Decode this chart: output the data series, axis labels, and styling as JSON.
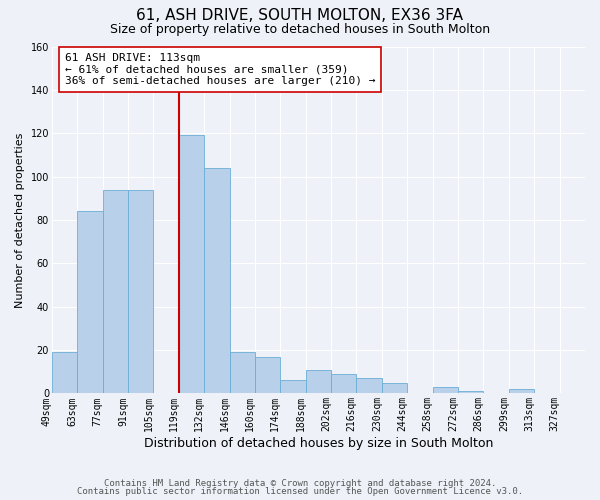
{
  "title": "61, ASH DRIVE, SOUTH MOLTON, EX36 3FA",
  "subtitle": "Size of property relative to detached houses in South Molton",
  "xlabel": "Distribution of detached houses by size in South Molton",
  "ylabel": "Number of detached properties",
  "footnote1": "Contains HM Land Registry data © Crown copyright and database right 2024.",
  "footnote2": "Contains public sector information licensed under the Open Government Licence v3.0.",
  "bin_labels": [
    "49sqm",
    "63sqm",
    "77sqm",
    "91sqm",
    "105sqm",
    "119sqm",
    "132sqm",
    "146sqm",
    "160sqm",
    "174sqm",
    "188sqm",
    "202sqm",
    "216sqm",
    "230sqm",
    "244sqm",
    "258sqm",
    "272sqm",
    "286sqm",
    "299sqm",
    "313sqm",
    "327sqm"
  ],
  "bar_values": [
    19,
    84,
    94,
    94,
    0,
    119,
    104,
    19,
    17,
    6,
    11,
    9,
    7,
    5,
    0,
    3,
    1,
    0,
    2,
    0,
    0
  ],
  "bar_color": "#b8d0ea",
  "bar_edge_color": "#6aaed6",
  "background_color": "#eef2f8",
  "grid_color": "#ffffff",
  "ylim": [
    0,
    160
  ],
  "yticks": [
    0,
    20,
    40,
    60,
    80,
    100,
    120,
    140,
    160
  ],
  "annotation_property": "61 ASH DRIVE: 113sqm",
  "annotation_line1": "← 61% of detached houses are smaller (359)",
  "annotation_line2": "36% of semi-detached houses are larger (210) →",
  "vline_x_index": 5,
  "vline_color": "#cc0000",
  "annotation_box_edge": "#cc0000",
  "title_fontsize": 11,
  "subtitle_fontsize": 9,
  "xlabel_fontsize": 9,
  "ylabel_fontsize": 8,
  "tick_fontsize": 7,
  "annotation_fontsize": 8,
  "footnote_fontsize": 6.5
}
